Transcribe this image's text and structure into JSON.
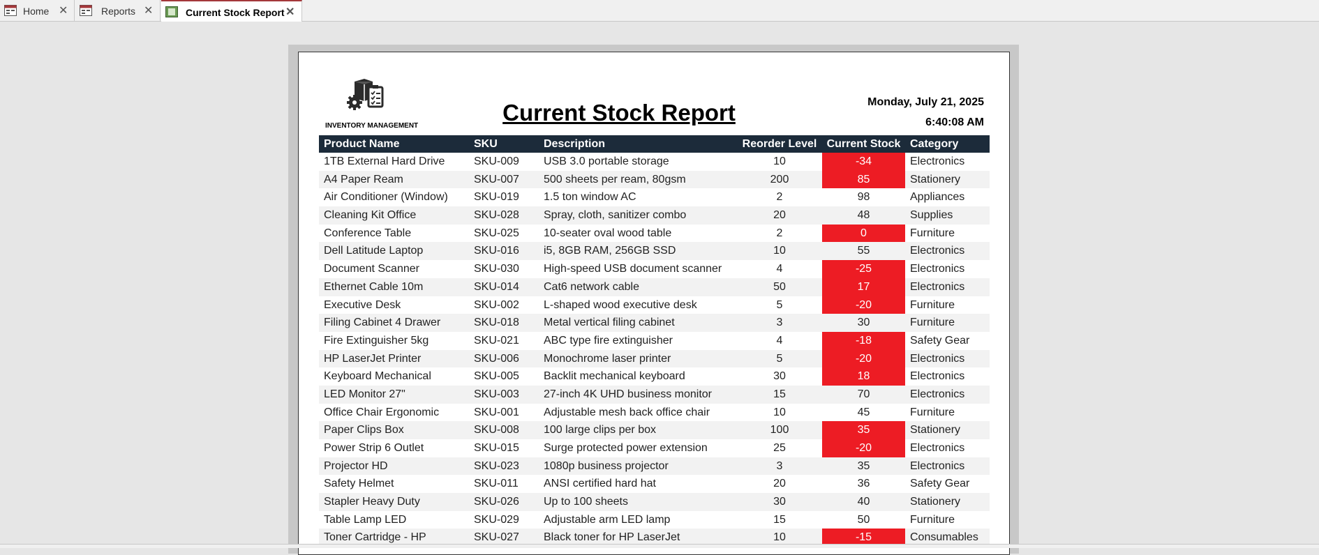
{
  "tabs": [
    "Home",
    "Reports",
    "Current Stock Report"
  ],
  "report": {
    "logo_caption": "INVENTORY MANAGEMENT",
    "title": "Current Stock Report",
    "date": "Monday, July 21, 2025",
    "time": "6:40:08 AM",
    "columns": [
      "Product Name",
      "SKU",
      "Description",
      "Reorder Level",
      "Current Stock",
      "Category"
    ],
    "rows": [
      [
        "1TB External Hard Drive",
        "SKU-009",
        "USB 3.0 portable storage",
        10,
        -34,
        "Electronics"
      ],
      [
        "A4 Paper Ream",
        "SKU-007",
        "500 sheets per ream, 80gsm",
        200,
        85,
        "Stationery"
      ],
      [
        "Air Conditioner (Window)",
        "SKU-019",
        "1.5 ton window AC",
        2,
        98,
        "Appliances"
      ],
      [
        "Cleaning Kit Office",
        "SKU-028",
        "Spray, cloth, sanitizer combo",
        20,
        48,
        "Supplies"
      ],
      [
        "Conference Table",
        "SKU-025",
        "10-seater oval wood table",
        2,
        0,
        "Furniture"
      ],
      [
        "Dell Latitude Laptop",
        "SKU-016",
        "i5, 8GB RAM, 256GB SSD",
        10,
        55,
        "Electronics"
      ],
      [
        "Document Scanner",
        "SKU-030",
        "High-speed USB document scanner",
        4,
        -25,
        "Electronics"
      ],
      [
        "Ethernet Cable 10m",
        "SKU-014",
        "Cat6 network cable",
        50,
        17,
        "Electronics"
      ],
      [
        "Executive Desk",
        "SKU-002",
        "L-shaped wood executive desk",
        5,
        -20,
        "Furniture"
      ],
      [
        "Filing Cabinet 4 Drawer",
        "SKU-018",
        "Metal vertical filing cabinet",
        3,
        30,
        "Furniture"
      ],
      [
        "Fire Extinguisher 5kg",
        "SKU-021",
        "ABC type fire extinguisher",
        4,
        -18,
        "Safety Gear"
      ],
      [
        "HP LaserJet Printer",
        "SKU-006",
        "Monochrome laser printer",
        5,
        -20,
        "Electronics"
      ],
      [
        "Keyboard Mechanical",
        "SKU-005",
        "Backlit mechanical keyboard",
        30,
        18,
        "Electronics"
      ],
      [
        "LED Monitor 27\"",
        "SKU-003",
        "27-inch 4K UHD business monitor",
        15,
        70,
        "Electronics"
      ],
      [
        "Office Chair Ergonomic",
        "SKU-001",
        "Adjustable mesh back office chair",
        10,
        45,
        "Furniture"
      ],
      [
        "Paper Clips Box",
        "SKU-008",
        "100 large clips per box",
        100,
        35,
        "Stationery"
      ],
      [
        "Power Strip 6 Outlet",
        "SKU-015",
        "Surge protected power extension",
        25,
        -20,
        "Electronics"
      ],
      [
        "Projector HD",
        "SKU-023",
        "1080p business projector",
        3,
        35,
        "Electronics"
      ],
      [
        "Safety Helmet",
        "SKU-011",
        "ANSI certified hard hat",
        20,
        36,
        "Safety Gear"
      ],
      [
        "Stapler Heavy Duty",
        "SKU-026",
        "Up to 100 sheets",
        30,
        40,
        "Stationery"
      ],
      [
        "Table Lamp LED",
        "SKU-029",
        "Adjustable arm LED lamp",
        15,
        50,
        "Furniture"
      ],
      [
        "Toner Cartridge - HP",
        "SKU-027",
        "Black toner for HP LaserJet",
        10,
        -15,
        "Consumables"
      ]
    ]
  }
}
